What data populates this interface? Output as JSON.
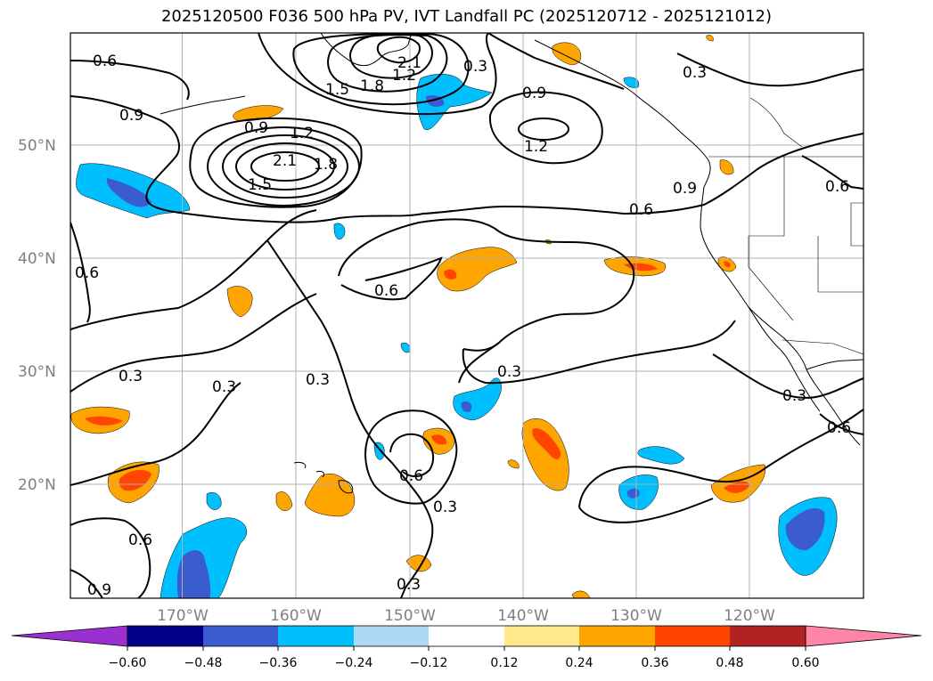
{
  "title": "2025120500 F036 500 hPa PV, IVT Landfall PC (2025120712 - 2025121012)",
  "map": {
    "lon_range": [
      -180,
      -110
    ],
    "lat_range": [
      10,
      60
    ],
    "lat_ticks": [
      "50°N",
      "40°N",
      "30°N",
      "20°N"
    ],
    "lon_ticks": [
      "170°W",
      "160°W",
      "150°W",
      "140°W",
      "130°W",
      "120°W"
    ],
    "gridlines": true
  },
  "contour_labels": [
    "0.6",
    "0.9",
    "1.2",
    "1.5",
    "1.8",
    "2.1",
    "0.9",
    "1.2",
    "1.5",
    "1.8",
    "2.1",
    "0.3",
    "0.9",
    "1.2",
    "0.9",
    "0.6",
    "0.6",
    "0.6",
    "0.3",
    "0.3",
    "0.3",
    "0.3",
    "0.6",
    "0.3",
    "0.6",
    "0.9",
    "0.3",
    "0.6",
    "0.3",
    "0.3",
    "0.6"
  ],
  "colorbar": {
    "ticks": [
      "−0.60",
      "−0.48",
      "−0.36",
      "−0.24",
      "−0.12",
      "0.12",
      "0.24",
      "0.36",
      "0.48",
      "0.60"
    ],
    "colors": [
      "#9b30d0",
      "#00008b",
      "#3b5cd0",
      "#00bfff",
      "#add8f6",
      "#ffffff",
      "#ffe98a",
      "#ffa500",
      "#ff4500",
      "#b22222",
      "#ff85a8"
    ]
  },
  "fill_colors": {
    "positive_low": "#ffa500",
    "positive_mid": "#ff4500",
    "negative_low": "#00bfff",
    "negative_mid": "#3b5cd0"
  }
}
